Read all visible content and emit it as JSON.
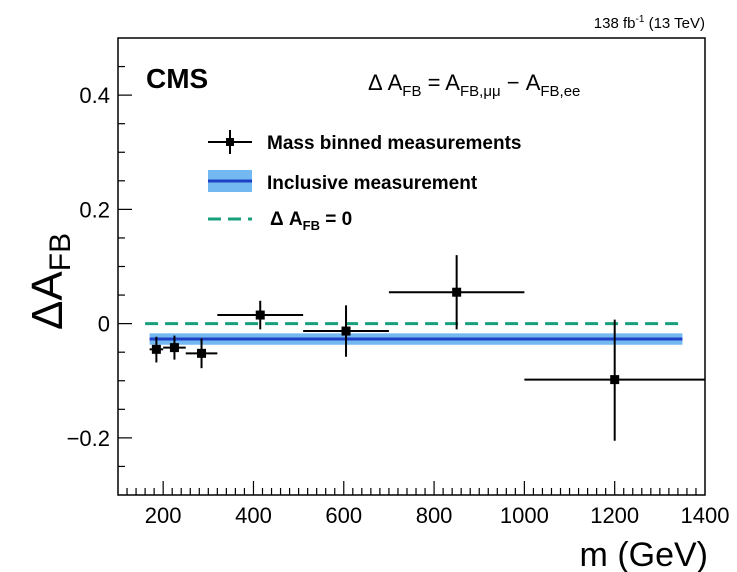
{
  "chart_data": {
    "type": "scatter",
    "experiment": "CMS",
    "lumi_label": {
      "lumi": "138 fb",
      "exp": "-1",
      "energy": " (13 TeV)"
    },
    "formula": {
      "lhs": "Δ A",
      "lhs_sub": "FB",
      "eq": " = A",
      "mm_sub": "FB,μμ",
      "minus": " − A",
      "ee_sub": "FB,ee"
    },
    "xlabel": "m (GeV)",
    "ylabel": {
      "main": "ΔA",
      "sub": "FB"
    },
    "xlim": [
      100,
      1400
    ],
    "ylim": [
      -0.3,
      0.5
    ],
    "x_ticks": [
      200,
      400,
      600,
      800,
      1000,
      1200,
      1400
    ],
    "y_ticks": [
      -0.2,
      0,
      0.2,
      0.4
    ],
    "y_tick_labels": [
      "−0.2",
      "0",
      "0.2",
      "0.4"
    ],
    "series": [
      {
        "name": "Mass binned measurements",
        "color": "#000000",
        "points": [
          {
            "x": 185,
            "xlo": 170,
            "xhi": 200,
            "y": -0.045,
            "ylo": -0.068,
            "yhi": -0.023
          },
          {
            "x": 225,
            "xlo": 200,
            "xhi": 250,
            "y": -0.042,
            "ylo": -0.063,
            "yhi": -0.021
          },
          {
            "x": 285,
            "xlo": 250,
            "xhi": 320,
            "y": -0.052,
            "ylo": -0.078,
            "yhi": -0.026
          },
          {
            "x": 415,
            "xlo": 320,
            "xhi": 510,
            "y": 0.015,
            "ylo": -0.01,
            "yhi": 0.04
          },
          {
            "x": 605,
            "xlo": 510,
            "xhi": 700,
            "y": -0.013,
            "ylo": -0.058,
            "yhi": 0.032
          },
          {
            "x": 850,
            "xlo": 700,
            "xhi": 1000,
            "y": 0.055,
            "ylo": -0.01,
            "yhi": 0.12
          },
          {
            "x": 1200,
            "xlo": 1000,
            "xhi": 1400,
            "y": -0.098,
            "ylo": -0.205,
            "yhi": 0.007
          }
        ]
      },
      {
        "name": "Inclusive measurement",
        "type": "band",
        "x_range": [
          170,
          1350
        ],
        "y": -0.027,
        "ylo": -0.037,
        "yhi": -0.017,
        "line_color": "#1f3fc7",
        "band_color": "#74b8f1"
      },
      {
        "name": "Δ A",
        "name_sub": "FB",
        "name_suffix": " = 0",
        "type": "hline",
        "x_range": [
          160,
          1350
        ],
        "y": 0,
        "color": "#18a07c",
        "dashed": true
      }
    ],
    "grid": false,
    "legend_position": "top-center"
  }
}
